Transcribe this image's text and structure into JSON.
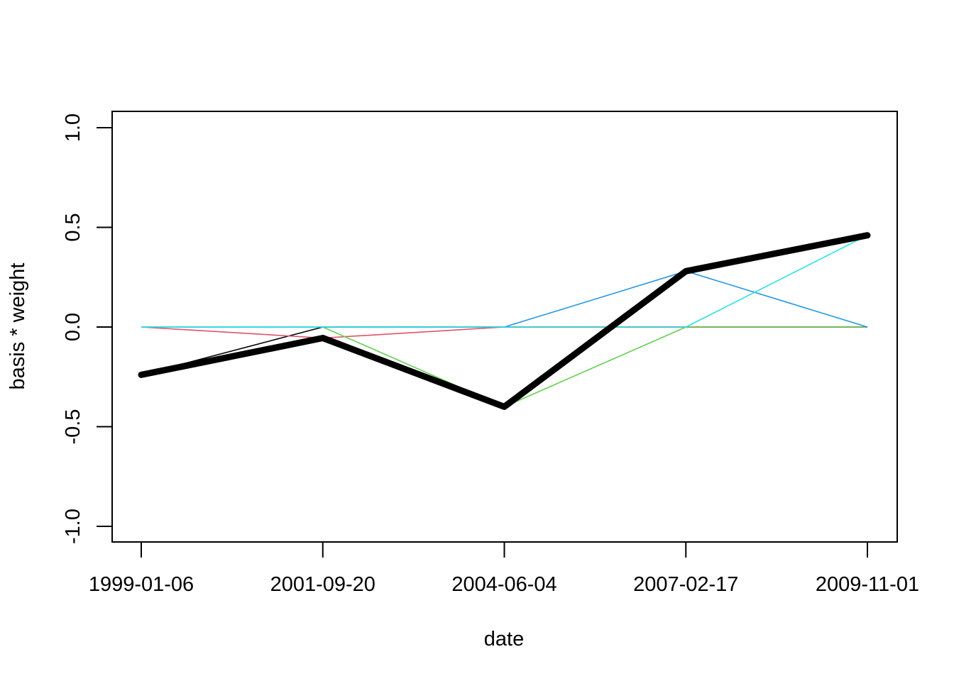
{
  "chart_data": {
    "type": "line",
    "title": "",
    "xlabel": "date",
    "ylabel": "basis * weight",
    "x": [
      "1999-01-06",
      "2001-09-20",
      "2004-06-04",
      "2007-02-17",
      "2009-11-01"
    ],
    "x_tick_labels": [
      "1999-01-06",
      "2001-09-20",
      "2004-06-04",
      "2007-02-17",
      "2009-11-01"
    ],
    "ylim": [
      -1.0,
      1.0
    ],
    "y_ticks": [
      -1.0,
      -0.5,
      0.0,
      0.5,
      1.0
    ],
    "y_tick_labels": [
      "-1.0",
      "-0.5",
      "0.0",
      "0.5",
      "1.0"
    ],
    "grid": false,
    "legend": "none",
    "series": [
      {
        "color": "#000000",
        "width": "thin",
        "values": [
          -0.24,
          0.0,
          0.0,
          0.0,
          0.0
        ]
      },
      {
        "color": "#DF536B",
        "width": "thin",
        "values": [
          0.0,
          -0.055,
          0.0,
          0.0,
          0.0
        ]
      },
      {
        "color": "#61D04F",
        "width": "thin",
        "values": [
          0.0,
          0.0,
          -0.4,
          0.0,
          0.0
        ]
      },
      {
        "color": "#2297E6",
        "width": "thin",
        "values": [
          0.0,
          0.0,
          0.0,
          0.28,
          0.0
        ]
      },
      {
        "color": "#28E2E5",
        "width": "thin",
        "values": [
          0.0,
          0.0,
          0.0,
          0.0,
          0.46
        ]
      },
      {
        "color": "#000000",
        "width": "thick",
        "values": [
          -0.24,
          -0.055,
          -0.4,
          0.28,
          0.46
        ]
      }
    ]
  }
}
